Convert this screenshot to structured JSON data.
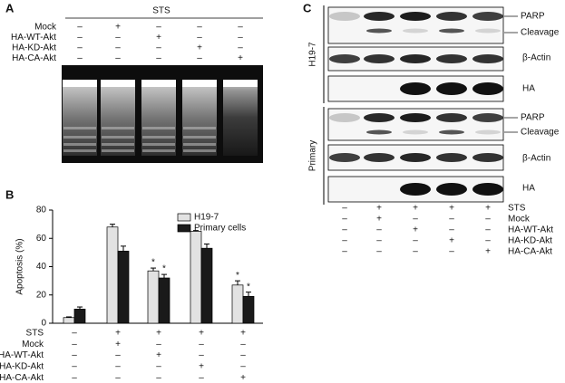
{
  "panels": {
    "a": "A",
    "b": "B",
    "c": "C"
  },
  "gel": {
    "title": "STS",
    "rows": [
      {
        "label": "Mock",
        "signs": [
          "–",
          "+",
          "–",
          "–",
          "–"
        ]
      },
      {
        "label": "HA-WT-Akt",
        "signs": [
          "–",
          "–",
          "+",
          "–",
          "–"
        ]
      },
      {
        "label": "HA-KD-Akt",
        "signs": [
          "–",
          "–",
          "–",
          "+",
          "–"
        ]
      },
      {
        "label": "HA-CA-Akt",
        "signs": [
          "–",
          "–",
          "–",
          "–",
          "+"
        ]
      }
    ]
  },
  "chart_data": {
    "type": "bar",
    "ylabel": "Apoptosis (%)",
    "categories": [
      null,
      null,
      null,
      null,
      null
    ],
    "series": [
      {
        "name": "H19-7",
        "color": "#e2e2e2",
        "values": [
          4,
          68,
          37,
          65,
          27
        ],
        "errors": [
          0.5,
          2,
          2,
          0.5,
          3
        ],
        "significance": [
          null,
          null,
          "*",
          null,
          "*"
        ]
      },
      {
        "name": "Primary cells",
        "color": "#1a1a1a",
        "values": [
          10,
          51,
          32,
          53,
          19
        ],
        "errors": [
          1.5,
          3.5,
          2.5,
          3,
          3
        ],
        "significance": [
          null,
          null,
          "*",
          null,
          "*"
        ]
      }
    ],
    "ylim": [
      0,
      80
    ],
    "yticks": [
      0,
      20,
      40,
      60,
      80
    ],
    "legend": "top-right",
    "conditions": [
      {
        "label": "STS",
        "signs": [
          "–",
          "+",
          "+",
          "+",
          "+"
        ]
      },
      {
        "label": "Mock",
        "signs": [
          "–",
          "+",
          "–",
          "–",
          "–"
        ]
      },
      {
        "label": "HA-WT-Akt",
        "signs": [
          "–",
          "–",
          "+",
          "–",
          "–"
        ]
      },
      {
        "label": "HA-KD-Akt",
        "signs": [
          "–",
          "–",
          "–",
          "+",
          "–"
        ]
      },
      {
        "label": "HA-CA-Akt",
        "signs": [
          "–",
          "–",
          "–",
          "–",
          "+"
        ]
      }
    ]
  },
  "blot": {
    "groups": [
      {
        "label": "H19-7",
        "bands": [
          "PARP",
          "Cleavage",
          "β-Actin",
          "HA"
        ]
      },
      {
        "label": "Primary",
        "bands": [
          "PARP",
          "Cleavage",
          "β-Actin",
          "HA"
        ]
      }
    ],
    "conditions": [
      {
        "label": "STS",
        "signs": [
          "–",
          "+",
          "+",
          "+",
          "+"
        ]
      },
      {
        "label": "Mock",
        "signs": [
          "–",
          "+",
          "–",
          "–",
          "–"
        ]
      },
      {
        "label": "HA-WT-Akt",
        "signs": [
          "–",
          "–",
          "+",
          "–",
          "–"
        ]
      },
      {
        "label": "HA-KD-Akt",
        "signs": [
          "–",
          "–",
          "–",
          "+",
          "–"
        ]
      },
      {
        "label": "HA-CA-Akt",
        "signs": [
          "–",
          "–",
          "–",
          "–",
          "+"
        ]
      }
    ]
  }
}
